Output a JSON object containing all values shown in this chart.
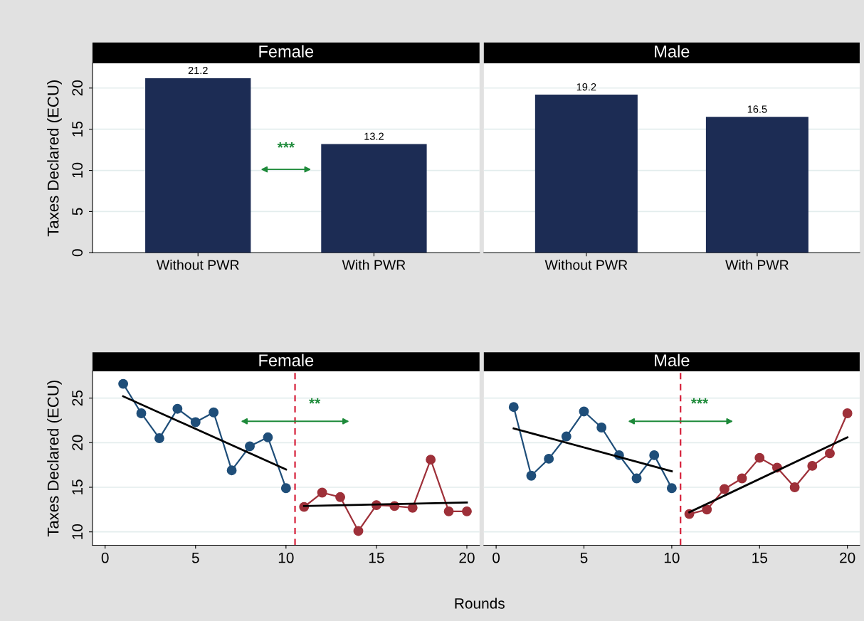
{
  "chart_data": [
    {
      "type": "bar",
      "title": "Female",
      "ylabel": "Taxes Declared (ECU)",
      "categories": [
        "Without PWR",
        "With PWR"
      ],
      "values": [
        21.2,
        13.2
      ],
      "color": "#1c2c54",
      "data_labels": true,
      "ylim": [
        0,
        23
      ],
      "yticks": [
        0,
        5,
        10,
        15,
        20
      ],
      "grid": "y",
      "annotations": [
        "***"
      ]
    },
    {
      "type": "bar",
      "title": "Male",
      "categories": [
        "Without PWR",
        "With PWR"
      ],
      "values": [
        19.2,
        16.5
      ],
      "color": "#1c2c54",
      "data_labels": true,
      "ylim": [
        0,
        23
      ],
      "yticks": [
        0,
        5,
        10,
        15,
        20
      ],
      "grid": "y",
      "tick_labels": "x"
    },
    {
      "type": "line",
      "title": "Female",
      "ylabel": "Taxes Declared (ECU)",
      "xlabel": "Rounds",
      "marker": "circle",
      "xlim": [
        -0.7,
        20.7
      ],
      "xticks": [
        0,
        5,
        10,
        15,
        20
      ],
      "ylim": [
        8.5,
        28
      ],
      "yticks": [
        10,
        15,
        20,
        25
      ],
      "grid": "y",
      "series": [
        {
          "color": "#1f4e79",
          "x": [
            1,
            2,
            3,
            4,
            5,
            6,
            7,
            8,
            9,
            10
          ],
          "values": [
            26.6,
            23.3,
            20.5,
            23.8,
            22.3,
            23.4,
            16.9,
            19.6,
            20.6,
            14.9
          ]
        },
        {
          "color": "#9e3039",
          "x": [
            11,
            12,
            13,
            14,
            15,
            16,
            17,
            18,
            19,
            20
          ],
          "values": [
            12.8,
            14.4,
            13.9,
            10.1,
            13.0,
            12.9,
            12.7,
            18.1,
            12.3,
            12.3
          ]
        },
        {
          "color": "#000000",
          "marker": "none",
          "x": [
            1,
            10
          ],
          "values": [
            25.2,
            17.0
          ]
        },
        {
          "color": "#000000",
          "marker": "none",
          "x": [
            11,
            20
          ],
          "values": [
            12.9,
            13.3
          ]
        }
      ],
      "ref_lines": [
        {
          "axis": "x",
          "value": 10.5,
          "color": "#d6203a",
          "line_style": "dashed"
        }
      ],
      "annotations": [
        {
          "text": "**",
          "x": 10.5,
          "y": 22.4
        }
      ]
    },
    {
      "type": "line",
      "title": "Male",
      "marker": "circle",
      "xlim": [
        -0.7,
        20.7
      ],
      "xticks": [
        0,
        5,
        10,
        15,
        20
      ],
      "ylim": [
        8.5,
        28
      ],
      "yticks": [
        10,
        15,
        20,
        25
      ],
      "grid": "y",
      "tick_labels": "x",
      "series": [
        {
          "color": "#1f4e79",
          "x": [
            1,
            2,
            3,
            4,
            5,
            6,
            7,
            8,
            9,
            10
          ],
          "values": [
            24.0,
            16.3,
            18.2,
            20.7,
            23.5,
            21.7,
            18.6,
            16.0,
            18.6,
            14.9
          ]
        },
        {
          "color": "#9e3039",
          "x": [
            11,
            12,
            13,
            14,
            15,
            16,
            17,
            18,
            19,
            20
          ],
          "values": [
            12.0,
            12.5,
            14.8,
            16.0,
            18.3,
            17.2,
            15.0,
            17.4,
            18.8,
            23.3
          ]
        },
        {
          "color": "#000000",
          "marker": "none",
          "x": [
            1,
            10
          ],
          "values": [
            21.6,
            16.8
          ]
        },
        {
          "color": "#000000",
          "marker": "none",
          "x": [
            11,
            20
          ],
          "values": [
            12.2,
            20.6
          ]
        }
      ],
      "ref_lines": [
        {
          "axis": "x",
          "value": 10.5,
          "color": "#d6203a",
          "line_style": "dashed"
        }
      ],
      "annotations": [
        {
          "text": "***",
          "x": 10.5,
          "y": 22.4
        }
      ]
    }
  ]
}
